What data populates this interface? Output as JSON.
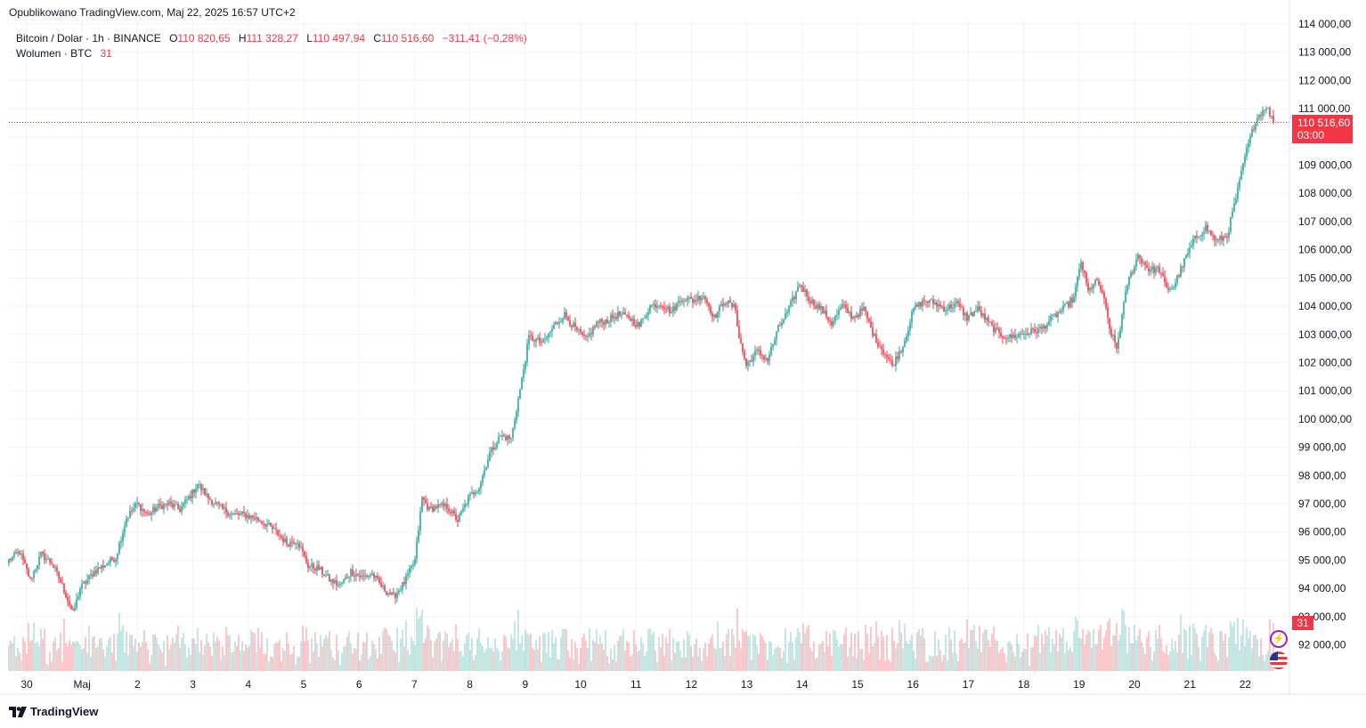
{
  "header": {
    "published": "Opublikowano TradingView.com, Maj 22, 2025 16:57 UTC+2"
  },
  "legend": {
    "symbol": "Bitcoin / Dolar · 1h · BINANCE",
    "o_label": "O",
    "o_value": "110 820,65",
    "h_label": "H",
    "h_value": "111 328,27",
    "l_label": "L",
    "l_value": "110 497,94",
    "c_label": "C",
    "c_value": "110 516,60",
    "change": "−311,41 (−0,28%)",
    "volume_label": "Wolumen · BTC",
    "volume_value": "31"
  },
  "price_tag": {
    "price": "110 516,60",
    "countdown": "03:00"
  },
  "volume_tag": "31",
  "brand": "TradingView",
  "icons": {
    "logo": "tradingview-logo-icon",
    "flash": "flash-icon",
    "flag": "us-flag-icon"
  },
  "colors": {
    "up": "#26a69a",
    "down": "#f23645",
    "grid": "#f0f3fa",
    "text": "#131722",
    "last_price_line": "#f23645"
  },
  "chart_data": {
    "type": "candlestick",
    "interval": "1h",
    "ylim": [
      91000,
      114000
    ],
    "y_ticks": [
      92000,
      93000,
      94000,
      95000,
      96000,
      97000,
      98000,
      99000,
      100000,
      101000,
      102000,
      103000,
      104000,
      105000,
      106000,
      107000,
      108000,
      109000,
      110000,
      111000,
      112000,
      113000,
      114000
    ],
    "y_tick_labels": [
      "92 000,00",
      "93 000,00",
      "94 000,00",
      "95 000,00",
      "96 000,00",
      "97 000,00",
      "98 000,00",
      "99 000,00",
      "100 000,00",
      "101 000,00",
      "102 000,00",
      "103 000,00",
      "104 000,00",
      "105 000,00",
      "106 000,00",
      "107 000,00",
      "108 000,00",
      "109 000,00",
      "110 000,00",
      "111 000,00",
      "112 000,00",
      "113 000,00",
      "114 000,00"
    ],
    "x_labels": [
      "30",
      "Maj",
      "2",
      "3",
      "4",
      "5",
      "6",
      "7",
      "8",
      "9",
      "10",
      "11",
      "12",
      "13",
      "14",
      "15",
      "16",
      "17",
      "18",
      "19",
      "20",
      "21",
      "22"
    ],
    "last_price": 110516.6,
    "close_path": [
      [
        0,
        95000
      ],
      [
        6,
        95300
      ],
      [
        12,
        94300
      ],
      [
        18,
        95200
      ],
      [
        24,
        94900
      ],
      [
        30,
        94100
      ],
      [
        36,
        93100
      ],
      [
        40,
        94000
      ],
      [
        48,
        94600
      ],
      [
        60,
        95100
      ],
      [
        66,
        96500
      ],
      [
        72,
        97000
      ],
      [
        78,
        96600
      ],
      [
        84,
        96900
      ],
      [
        90,
        97000
      ],
      [
        96,
        96800
      ],
      [
        102,
        97300
      ],
      [
        106,
        97700
      ],
      [
        112,
        97200
      ],
      [
        120,
        96800
      ],
      [
        126,
        96600
      ],
      [
        132,
        96600
      ],
      [
        138,
        96500
      ],
      [
        144,
        96300
      ],
      [
        150,
        96000
      ],
      [
        156,
        95600
      ],
      [
        162,
        95700
      ],
      [
        168,
        94800
      ],
      [
        174,
        94700
      ],
      [
        180,
        94300
      ],
      [
        186,
        94100
      ],
      [
        192,
        94600
      ],
      [
        198,
        94400
      ],
      [
        204,
        94500
      ],
      [
        210,
        94000
      ],
      [
        216,
        93700
      ],
      [
        222,
        94200
      ],
      [
        228,
        95000
      ],
      [
        232,
        97200
      ],
      [
        236,
        96800
      ],
      [
        240,
        96900
      ],
      [
        246,
        96900
      ],
      [
        252,
        96400
      ],
      [
        258,
        97200
      ],
      [
        264,
        97600
      ],
      [
        270,
        98800
      ],
      [
        276,
        99400
      ],
      [
        282,
        99300
      ],
      [
        288,
        101400
      ],
      [
        292,
        102900
      ],
      [
        300,
        102700
      ],
      [
        306,
        103300
      ],
      [
        312,
        103700
      ],
      [
        318,
        103200
      ],
      [
        324,
        102800
      ],
      [
        330,
        103400
      ],
      [
        336,
        103500
      ],
      [
        342,
        103700
      ],
      [
        348,
        103600
      ],
      [
        354,
        103300
      ],
      [
        360,
        104000
      ],
      [
        366,
        104100
      ],
      [
        372,
        103800
      ],
      [
        378,
        104300
      ],
      [
        384,
        104200
      ],
      [
        390,
        104400
      ],
      [
        396,
        103600
      ],
      [
        402,
        104200
      ],
      [
        408,
        103900
      ],
      [
        410,
        102900
      ],
      [
        414,
        101900
      ],
      [
        420,
        102400
      ],
      [
        426,
        102100
      ],
      [
        432,
        103200
      ],
      [
        438,
        103900
      ],
      [
        444,
        104800
      ],
      [
        450,
        104200
      ],
      [
        456,
        103900
      ],
      [
        462,
        103400
      ],
      [
        468,
        104000
      ],
      [
        474,
        103600
      ],
      [
        480,
        103900
      ],
      [
        486,
        102900
      ],
      [
        492,
        102300
      ],
      [
        496,
        101900
      ],
      [
        502,
        102600
      ],
      [
        508,
        103900
      ],
      [
        514,
        104200
      ],
      [
        520,
        104100
      ],
      [
        526,
        103900
      ],
      [
        532,
        104100
      ],
      [
        538,
        103600
      ],
      [
        544,
        103900
      ],
      [
        550,
        103400
      ],
      [
        556,
        103000
      ],
      [
        562,
        102900
      ],
      [
        568,
        103000
      ],
      [
        574,
        103100
      ],
      [
        580,
        103200
      ],
      [
        586,
        103600
      ],
      [
        592,
        103900
      ],
      [
        598,
        104300
      ],
      [
        602,
        105600
      ],
      [
        606,
        104500
      ],
      [
        610,
        104900
      ],
      [
        614,
        104500
      ],
      [
        618,
        103200
      ],
      [
        622,
        102500
      ],
      [
        628,
        104800
      ],
      [
        634,
        105800
      ],
      [
        640,
        105300
      ],
      [
        646,
        105300
      ],
      [
        650,
        104600
      ],
      [
        654,
        104700
      ],
      [
        660,
        105600
      ],
      [
        666,
        106400
      ],
      [
        672,
        106800
      ],
      [
        678,
        106300
      ],
      [
        684,
        106500
      ],
      [
        690,
        108100
      ],
      [
        694,
        109300
      ],
      [
        700,
        110600
      ],
      [
        706,
        111100
      ],
      [
        710,
        110516.6
      ]
    ],
    "volume_label": "Wolumen · BTC",
    "volume_last": 31
  }
}
